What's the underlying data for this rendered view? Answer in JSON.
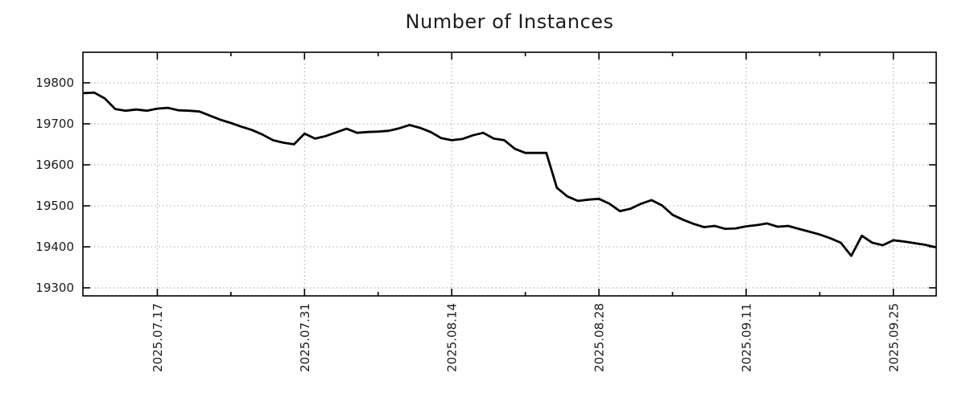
{
  "chart_data": {
    "type": "line",
    "title": "Number of Instances",
    "xlabel": "",
    "ylabel": "",
    "grid": true,
    "legend": false,
    "line_color": "#000000",
    "grid_color": "#a6a6a6",
    "axis_color": "#000000",
    "text_color": "#1c1c1c",
    "ylim": [
      19280,
      19875
    ],
    "y_ticks": [
      19300,
      19400,
      19500,
      19600,
      19700,
      19800
    ],
    "x_tick_labels": [
      "2025.07.17",
      "2025.07.31",
      "2025.08.14",
      "2025.08.28",
      "2025.09.11",
      "2025.09.25"
    ],
    "x_tick_indices": [
      7,
      21,
      35,
      49,
      63,
      77
    ],
    "x_minor_tick_indices": [
      14,
      28,
      42,
      56,
      70
    ],
    "x": [
      "2025.07.10",
      "2025.07.11",
      "2025.07.12",
      "2025.07.13",
      "2025.07.14",
      "2025.07.15",
      "2025.07.16",
      "2025.07.17",
      "2025.07.18",
      "2025.07.19",
      "2025.07.20",
      "2025.07.21",
      "2025.07.22",
      "2025.07.23",
      "2025.07.24",
      "2025.07.25",
      "2025.07.26",
      "2025.07.27",
      "2025.07.28",
      "2025.07.29",
      "2025.07.30",
      "2025.07.31",
      "2025.08.01",
      "2025.08.02",
      "2025.08.03",
      "2025.08.04",
      "2025.08.05",
      "2025.08.06",
      "2025.08.07",
      "2025.08.08",
      "2025.08.09",
      "2025.08.10",
      "2025.08.11",
      "2025.08.12",
      "2025.08.13",
      "2025.08.14",
      "2025.08.15",
      "2025.08.16",
      "2025.08.17",
      "2025.08.18",
      "2025.08.19",
      "2025.08.20",
      "2025.08.21",
      "2025.08.22",
      "2025.08.23",
      "2025.08.24",
      "2025.08.25",
      "2025.08.26",
      "2025.08.27",
      "2025.08.28",
      "2025.08.29",
      "2025.08.30",
      "2025.08.31",
      "2025.09.01",
      "2025.09.02",
      "2025.09.03",
      "2025.09.04",
      "2025.09.05",
      "2025.09.06",
      "2025.09.07",
      "2025.09.08",
      "2025.09.09",
      "2025.09.10",
      "2025.09.11",
      "2025.09.12",
      "2025.09.13",
      "2025.09.14",
      "2025.09.15",
      "2025.09.16",
      "2025.09.17",
      "2025.09.18",
      "2025.09.19",
      "2025.09.20",
      "2025.09.21",
      "2025.09.22",
      "2025.09.23",
      "2025.09.24",
      "2025.09.25",
      "2025.09.26",
      "2025.09.27",
      "2025.09.28",
      "2025.09.29"
    ],
    "values": [
      19775,
      19776,
      19762,
      19736,
      19732,
      19735,
      19732,
      19737,
      19739,
      19733,
      19732,
      19730,
      19720,
      19710,
      19702,
      19693,
      19685,
      19674,
      19660,
      19654,
      19650,
      19676,
      19664,
      19670,
      19679,
      19688,
      19678,
      19680,
      19681,
      19683,
      19689,
      19697,
      19690,
      19680,
      19665,
      19660,
      19663,
      19672,
      19678,
      19664,
      19660,
      19639,
      19629,
      19629,
      19629,
      19544,
      19523,
      19512,
      19515,
      19517,
      19505,
      19487,
      19493,
      19505,
      19514,
      19501,
      19478,
      19466,
      19456,
      19448,
      19451,
      19444,
      19445,
      19450,
      19453,
      19457,
      19449,
      19451,
      19444,
      19437,
      19430,
      19421,
      19410,
      19378,
      19427,
      19410,
      19404,
      19416,
      19413,
      19409,
      19405,
      19399
    ]
  }
}
